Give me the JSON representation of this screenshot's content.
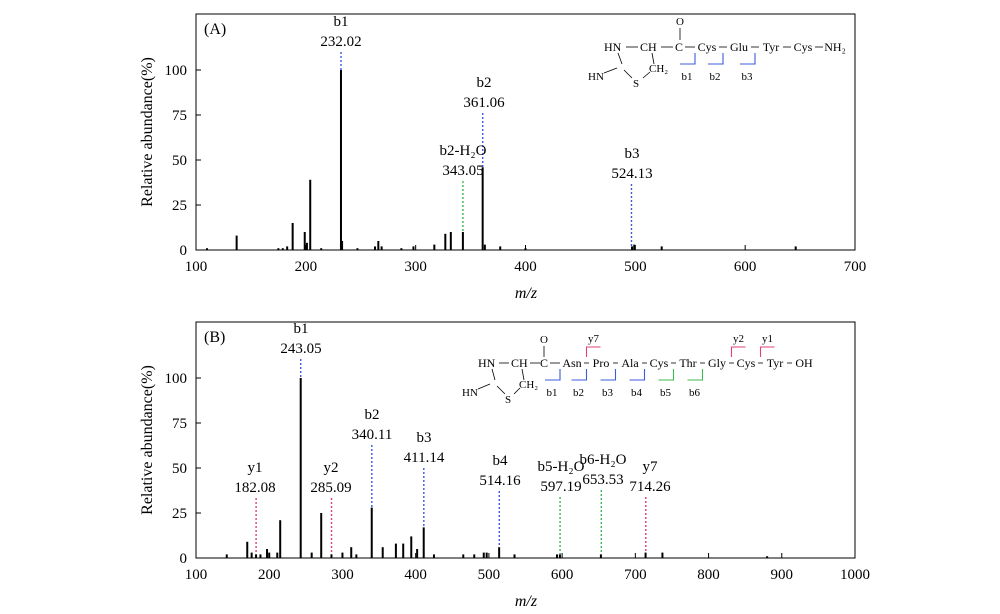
{
  "chart_data": [
    {
      "type": "bar",
      "panel_label": "(A)",
      "xlabel": "m/z",
      "ylabel": "Relative abundance(%)",
      "xlim": [
        100,
        700
      ],
      "ylim": [
        0,
        100
      ],
      "xticks": [
        100,
        200,
        300,
        400,
        500,
        600,
        700
      ],
      "yticks": [
        0,
        25,
        50,
        75,
        100
      ],
      "peaks": [
        {
          "x": 110,
          "y": 1
        },
        {
          "x": 137,
          "y": 8
        },
        {
          "x": 175,
          "y": 1
        },
        {
          "x": 179,
          "y": 1
        },
        {
          "x": 183,
          "y": 2
        },
        {
          "x": 188,
          "y": 15
        },
        {
          "x": 199,
          "y": 10
        },
        {
          "x": 201,
          "y": 4
        },
        {
          "x": 204,
          "y": 39
        },
        {
          "x": 214,
          "y": 1
        },
        {
          "x": 232,
          "y": 100
        },
        {
          "x": 233,
          "y": 5
        },
        {
          "x": 247,
          "y": 1
        },
        {
          "x": 263,
          "y": 2
        },
        {
          "x": 266,
          "y": 5
        },
        {
          "x": 269,
          "y": 2
        },
        {
          "x": 287,
          "y": 1
        },
        {
          "x": 298,
          "y": 2
        },
        {
          "x": 317,
          "y": 3
        },
        {
          "x": 327,
          "y": 9
        },
        {
          "x": 332,
          "y": 10
        },
        {
          "x": 343,
          "y": 10
        },
        {
          "x": 361,
          "y": 46
        },
        {
          "x": 363,
          "y": 3
        },
        {
          "x": 377,
          "y": 2
        },
        {
          "x": 400,
          "y": 1
        },
        {
          "x": 497,
          "y": 2
        },
        {
          "x": 499,
          "y": 3
        },
        {
          "x": 524,
          "y": 2
        },
        {
          "x": 646,
          "y": 2
        }
      ],
      "annotations": [
        {
          "ion": "b1",
          "mz": "232.02",
          "x": 232.02,
          "type": "b"
        },
        {
          "ion": "b2",
          "mz": "361.06",
          "x": 361.06,
          "type": "b"
        },
        {
          "ion": "b2-H₂O",
          "mz": "343.05",
          "x": 343.05,
          "type": "b-h2o"
        },
        {
          "ion": "b3",
          "mz": "524.13",
          "x": 496.5,
          "type": "b"
        }
      ],
      "structure": {
        "residues": [
          "Cys",
          "Glu",
          "Tyr",
          "Cys",
          "NH₂"
        ],
        "ring": {
          "hn": "HN",
          "ch": "CH",
          "c": "C",
          "o": "O",
          "imine": "HN",
          "s": "S",
          "ch2": "CH₂"
        },
        "b_labels": [
          "b1",
          "b2",
          "b3"
        ],
        "y_labels": []
      }
    },
    {
      "type": "bar",
      "panel_label": "(B)",
      "xlabel": "m/z",
      "ylabel": "Relative abundance(%)",
      "xlim": [
        100,
        1000
      ],
      "ylim": [
        0,
        100
      ],
      "xticks": [
        100,
        200,
        300,
        400,
        500,
        600,
        700,
        800,
        900,
        1000
      ],
      "yticks": [
        0,
        25,
        50,
        75,
        100
      ],
      "peaks": [
        {
          "x": 142,
          "y": 2
        },
        {
          "x": 170,
          "y": 9
        },
        {
          "x": 176,
          "y": 3
        },
        {
          "x": 182,
          "y": 2
        },
        {
          "x": 188,
          "y": 2
        },
        {
          "x": 197,
          "y": 5
        },
        {
          "x": 200,
          "y": 3
        },
        {
          "x": 211,
          "y": 3
        },
        {
          "x": 215,
          "y": 21
        },
        {
          "x": 243,
          "y": 100
        },
        {
          "x": 258,
          "y": 3
        },
        {
          "x": 271,
          "y": 25
        },
        {
          "x": 285,
          "y": 2
        },
        {
          "x": 300,
          "y": 3
        },
        {
          "x": 312,
          "y": 6
        },
        {
          "x": 319,
          "y": 2
        },
        {
          "x": 340,
          "y": 28
        },
        {
          "x": 355,
          "y": 6
        },
        {
          "x": 373,
          "y": 8
        },
        {
          "x": 383,
          "y": 8
        },
        {
          "x": 394,
          "y": 12
        },
        {
          "x": 402,
          "y": 5
        },
        {
          "x": 411,
          "y": 17
        },
        {
          "x": 425,
          "y": 2
        },
        {
          "x": 465,
          "y": 2
        },
        {
          "x": 480,
          "y": 2
        },
        {
          "x": 493,
          "y": 3
        },
        {
          "x": 497,
          "y": 3
        },
        {
          "x": 514,
          "y": 6
        },
        {
          "x": 535,
          "y": 2
        },
        {
          "x": 593,
          "y": 2
        },
        {
          "x": 597,
          "y": 2
        },
        {
          "x": 653,
          "y": 2
        },
        {
          "x": 714,
          "y": 3
        },
        {
          "x": 737,
          "y": 3
        },
        {
          "x": 880,
          "y": 1
        }
      ],
      "annotations": [
        {
          "ion": "b1",
          "mz": "243.05",
          "x": 243.05,
          "type": "b"
        },
        {
          "ion": "y1",
          "mz": "182.08",
          "x": 182.08,
          "type": "y"
        },
        {
          "ion": "y2",
          "mz": "285.09",
          "x": 285.09,
          "type": "y"
        },
        {
          "ion": "b2",
          "mz": "340.11",
          "x": 340.11,
          "type": "b"
        },
        {
          "ion": "b3",
          "mz": "411.14",
          "x": 411.14,
          "type": "b"
        },
        {
          "ion": "b4",
          "mz": "514.16",
          "x": 514.16,
          "type": "b"
        },
        {
          "ion": "b5-H₂O",
          "mz": "597.19",
          "x": 597.19,
          "type": "b-h2o"
        },
        {
          "ion": "b6-H₂O",
          "mz": "653.53",
          "x": 653.53,
          "type": "b-h2o"
        },
        {
          "ion": "y7",
          "mz": "714.26",
          "x": 714.26,
          "type": "y"
        }
      ],
      "structure": {
        "residues": [
          "Asn",
          "Pro",
          "Ala",
          "Cys",
          "Thr",
          "Gly",
          "Cys",
          "Tyr",
          "OH"
        ],
        "ring": {
          "hn": "HN",
          "ch": "CH",
          "c": "C",
          "o": "O",
          "imine": "HN",
          "s": "S",
          "ch2": "CH₂"
        },
        "b_labels": [
          "b1",
          "b2",
          "b3",
          "b4",
          "b5",
          "b6"
        ],
        "y_labels": [
          "y7",
          "y2",
          "y1"
        ]
      }
    }
  ],
  "colors": {
    "b_ion": "#3b5bdb",
    "y_ion": "#e0407b",
    "h2o_loss": "#3fb950",
    "axis": "#000000"
  }
}
